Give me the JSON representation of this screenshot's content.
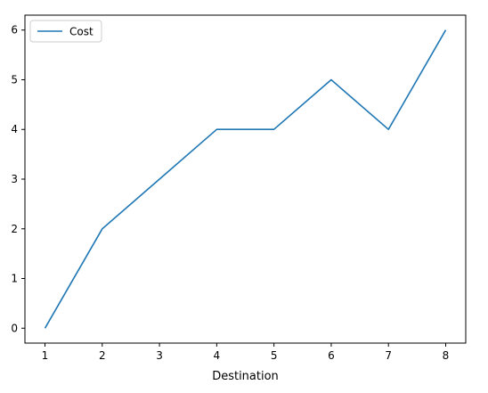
{
  "chart_data": {
    "type": "line",
    "title": "",
    "xlabel": "Destination",
    "ylabel": "",
    "x": [
      1,
      2,
      3,
      4,
      5,
      6,
      7,
      8
    ],
    "x_ticks": [
      "1",
      "2",
      "3",
      "4",
      "5",
      "6",
      "7",
      "8"
    ],
    "y_ticks": [
      "0",
      "1",
      "2",
      "3",
      "4",
      "5",
      "6"
    ],
    "ylim": [
      -0.3,
      6.3
    ],
    "xlim": [
      0.65,
      8.35
    ],
    "grid": false,
    "legend_position": "upper-left",
    "series": [
      {
        "name": "Cost",
        "color": "#1f77b4",
        "values": [
          0,
          2,
          3,
          4,
          4,
          5,
          4,
          6
        ]
      }
    ]
  }
}
